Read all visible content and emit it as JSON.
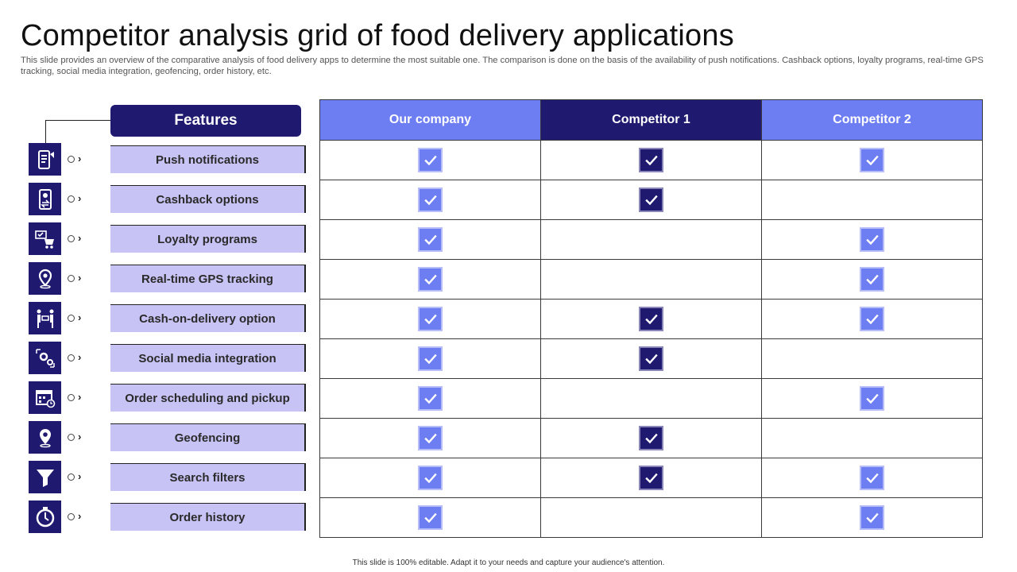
{
  "title": "Competitor analysis grid of food delivery applications",
  "subtitle": "This slide provides an overview of the comparative analysis of food delivery apps to determine the most suitable one. The comparison is done on the basis of the availability of push notifications. Cashback options, loyalty programs, real-time GPS tracking, social media integration, geofencing, order history, etc.",
  "features_header": "Features",
  "columns": [
    "Our company",
    "Competitor 1",
    "Competitor 2"
  ],
  "colors": {
    "dark": "#1f1a70",
    "light": "#6d7df2",
    "pill": "#c7c3f5"
  },
  "features": [
    {
      "label": "Push notifications",
      "icon": "mobile-notification-icon",
      "checks": [
        true,
        true,
        true
      ]
    },
    {
      "label": "Cashback options",
      "icon": "mobile-cashback-icon",
      "checks": [
        true,
        true,
        false
      ]
    },
    {
      "label": "Loyalty programs",
      "icon": "loyalty-cart-icon",
      "checks": [
        true,
        false,
        true
      ]
    },
    {
      "label": "Real-time GPS tracking",
      "icon": "map-pin-icon",
      "checks": [
        true,
        false,
        true
      ]
    },
    {
      "label": "Cash-on-delivery option",
      "icon": "cash-handover-icon",
      "checks": [
        true,
        true,
        true
      ]
    },
    {
      "label": "Social media integration",
      "icon": "gears-network-icon",
      "checks": [
        true,
        true,
        false
      ]
    },
    {
      "label": "Order scheduling and pickup",
      "icon": "calendar-clock-icon",
      "checks": [
        true,
        false,
        true
      ]
    },
    {
      "label": "Geofencing",
      "icon": "location-pin-icon",
      "checks": [
        true,
        true,
        false
      ]
    },
    {
      "label": "Search filters",
      "icon": "funnel-filter-icon",
      "checks": [
        true,
        true,
        true
      ]
    },
    {
      "label": "Order history",
      "icon": "stopwatch-history-icon",
      "checks": [
        true,
        false,
        true
      ]
    }
  ],
  "footer": "This slide is 100% editable. Adapt it to your needs and capture your audience's attention."
}
